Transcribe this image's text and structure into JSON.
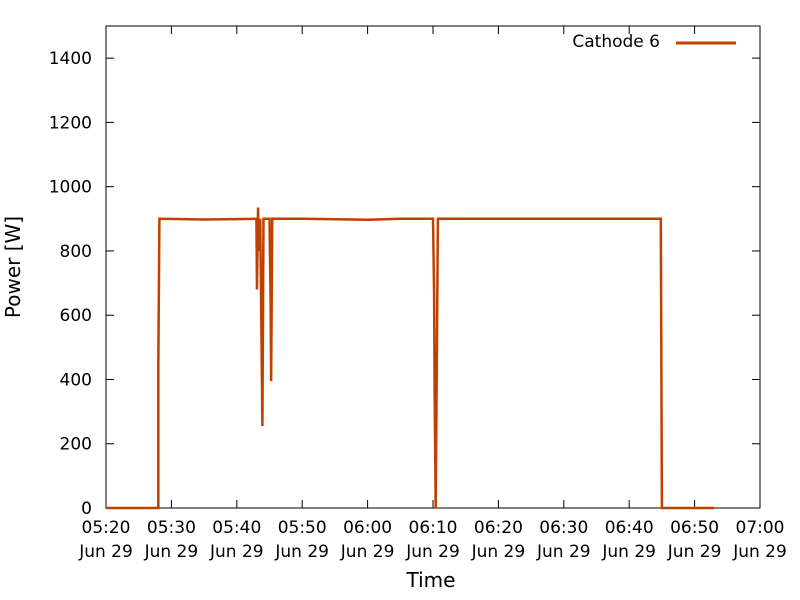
{
  "chart_data": {
    "type": "line",
    "title": "",
    "xlabel": "Time",
    "ylabel": "Power [W]",
    "xlim": [
      "05:20",
      "07:00"
    ],
    "ylim": [
      0,
      1500
    ],
    "x_ticks": [
      {
        "time": "05:20",
        "date": "Jun 29"
      },
      {
        "time": "05:30",
        "date": "Jun 29"
      },
      {
        "time": "05:40",
        "date": "Jun 29"
      },
      {
        "time": "05:50",
        "date": "Jun 29"
      },
      {
        "time": "06:00",
        "date": "Jun 29"
      },
      {
        "time": "06:10",
        "date": "Jun 29"
      },
      {
        "time": "06:20",
        "date": "Jun 29"
      },
      {
        "time": "06:30",
        "date": "Jun 29"
      },
      {
        "time": "06:40",
        "date": "Jun 29"
      },
      {
        "time": "06:50",
        "date": "Jun 29"
      },
      {
        "time": "07:00",
        "date": "Jun 29"
      }
    ],
    "y_ticks": [
      0,
      200,
      400,
      600,
      800,
      1000,
      1200,
      1400
    ],
    "grid": false,
    "legend_position": "top-right",
    "series": [
      {
        "name": "Cathode 6",
        "color": "#c04000",
        "points": [
          [
            "05:20:00",
            0
          ],
          [
            "05:28:00",
            0
          ],
          [
            "05:28:00",
            450
          ],
          [
            "05:28:10",
            900
          ],
          [
            "05:35:00",
            898
          ],
          [
            "05:43:00",
            900
          ],
          [
            "05:43:05",
            680
          ],
          [
            "05:43:15",
            935
          ],
          [
            "05:43:25",
            800
          ],
          [
            "05:43:35",
            900
          ],
          [
            "05:43:45",
            580
          ],
          [
            "05:43:55",
            255
          ],
          [
            "05:44:05",
            900
          ],
          [
            "05:45:00",
            900
          ],
          [
            "05:45:10",
            650
          ],
          [
            "05:45:15",
            395
          ],
          [
            "05:45:25",
            900
          ],
          [
            "05:50:00",
            900
          ],
          [
            "06:00:00",
            897
          ],
          [
            "06:05:00",
            900
          ],
          [
            "06:10:00",
            900
          ],
          [
            "06:10:10",
            670
          ],
          [
            "06:10:15",
            360
          ],
          [
            "06:10:25",
            0
          ],
          [
            "06:10:35",
            450
          ],
          [
            "06:10:45",
            900
          ],
          [
            "06:20:00",
            900
          ],
          [
            "06:30:00",
            900
          ],
          [
            "06:40:00",
            900
          ],
          [
            "06:44:50",
            900
          ],
          [
            "06:44:55",
            450
          ],
          [
            "06:45:00",
            0
          ],
          [
            "06:53:00",
            0
          ]
        ]
      }
    ]
  }
}
